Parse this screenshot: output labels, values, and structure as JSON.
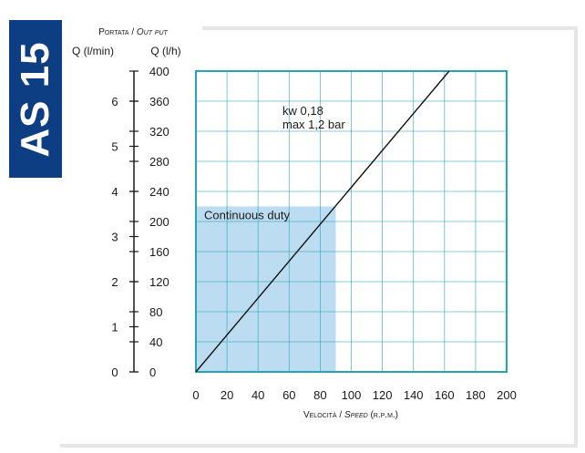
{
  "badge": {
    "text": "AS 15"
  },
  "chart_data": {
    "type": "line",
    "title": "",
    "y_header": {
      "line1": "Portata / Out put"
    },
    "y_left": {
      "label": "Q (l/min)",
      "ticks": [
        "0",
        "1",
        "2",
        "3",
        "4",
        "5",
        "6"
      ],
      "range": [
        0,
        6.667
      ]
    },
    "y_right": {
      "label": "Q (l/h)",
      "ticks": [
        "0",
        "40",
        "80",
        "120",
        "160",
        "200",
        "240",
        "280",
        "320",
        "360",
        "400"
      ],
      "range": [
        0,
        400
      ]
    },
    "x": {
      "label": "Velocità / Speed (r.p.m.)",
      "ticks": [
        "0",
        "20",
        "40",
        "60",
        "80",
        "100",
        "120",
        "140",
        "160",
        "180",
        "200"
      ],
      "range": [
        0,
        200
      ]
    },
    "grid": true,
    "series": [
      {
        "name": "kw 0,18",
        "name2": "max 1,2 bar",
        "points": [
          {
            "x": 0,
            "y": 0
          },
          {
            "x": 163,
            "y": 400
          }
        ]
      }
    ],
    "region": {
      "label": "Continuous duty",
      "x": [
        0,
        90
      ],
      "y": [
        0,
        220
      ]
    },
    "colors": {
      "frame": "#27a3b1",
      "grid": "#27a3b1",
      "region": "#bcdcf2",
      "line": "#111111"
    }
  }
}
